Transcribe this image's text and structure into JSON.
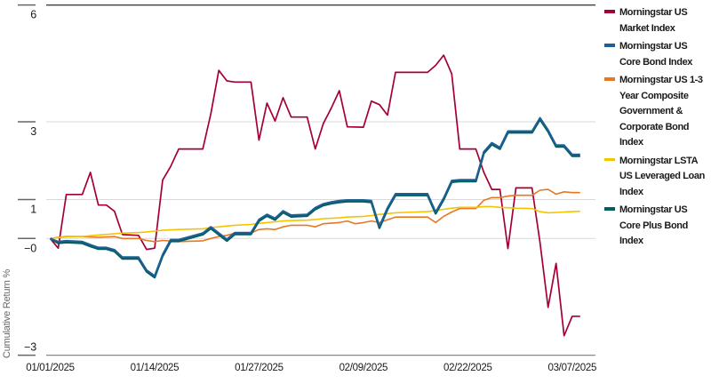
{
  "chart_data": {
    "type": "line",
    "title": "",
    "ylabel": "Cumulative Return %",
    "x_unit": "calendar days since 01/01/2025",
    "grid": "horizontal",
    "legend_position": "right",
    "ylim": [
      -3.0,
      6.0
    ],
    "xlim_days": [
      0,
      67
    ],
    "y_ticks": [
      {
        "value": 6,
        "label": "6"
      },
      {
        "value": 3,
        "label": "3"
      },
      {
        "value": 1,
        "label": "1"
      },
      {
        "value": 0,
        "label": "−0"
      },
      {
        "value": -3,
        "label": "−3"
      }
    ],
    "x_ticks": [
      {
        "day": 0,
        "label": "01/01/2025"
      },
      {
        "day": 13,
        "label": "01/14/2025"
      },
      {
        "day": 26,
        "label": "01/27/2025"
      },
      {
        "day": 39,
        "label": "02/09/2025"
      },
      {
        "day": 52,
        "label": "02/22/2025"
      },
      {
        "day": 65,
        "label": "03/07/2025"
      }
    ],
    "series": [
      {
        "name": "Morningstar US Market Index",
        "legend_lines": [
          "Morningstar US",
          "Market Index"
        ],
        "color": "#A50034",
        "points": [
          [
            0,
            0
          ],
          [
            1,
            -0.25
          ],
          [
            2,
            1.13
          ],
          [
            4,
            1.13
          ],
          [
            5,
            1.7
          ],
          [
            6,
            0.86
          ],
          [
            7,
            0.86
          ],
          [
            8,
            0.7
          ],
          [
            9,
            0.1
          ],
          [
            11,
            0.08
          ],
          [
            12,
            -0.28
          ],
          [
            13,
            -0.25
          ],
          [
            14,
            1.5
          ],
          [
            15,
            1.85
          ],
          [
            16,
            2.3
          ],
          [
            19,
            2.3
          ],
          [
            20,
            3.2
          ],
          [
            21,
            4.32
          ],
          [
            22,
            4.05
          ],
          [
            23,
            4.02
          ],
          [
            25,
            4.02
          ],
          [
            26,
            2.53
          ],
          [
            27,
            3.48
          ],
          [
            28,
            3.02
          ],
          [
            29,
            3.62
          ],
          [
            30,
            3.12
          ],
          [
            32,
            3.12
          ],
          [
            33,
            2.3
          ],
          [
            34,
            2.95
          ],
          [
            35,
            3.35
          ],
          [
            36,
            3.8
          ],
          [
            37,
            2.87
          ],
          [
            39,
            2.86
          ],
          [
            40,
            3.53
          ],
          [
            41,
            3.44
          ],
          [
            42,
            3.17
          ],
          [
            43,
            4.27
          ],
          [
            47,
            4.27
          ],
          [
            48,
            4.45
          ],
          [
            49,
            4.71
          ],
          [
            50,
            4.23
          ],
          [
            51,
            2.3
          ],
          [
            53,
            2.3
          ],
          [
            54,
            1.7
          ],
          [
            55,
            1.26
          ],
          [
            56,
            1.26
          ],
          [
            57,
            -0.26
          ],
          [
            58,
            1.3
          ],
          [
            60,
            1.3
          ],
          [
            61,
            -0.1
          ],
          [
            62,
            -1.77
          ],
          [
            63,
            -0.64
          ],
          [
            64,
            -2.5
          ],
          [
            65,
            -2.0
          ],
          [
            66,
            -2.0
          ]
        ]
      },
      {
        "name": "Morningstar US Core Bond Index",
        "legend_lines": [
          "Morningstar US",
          "Core Bond Index"
        ],
        "color": "#1E5E99",
        "points": [
          [
            0,
            0
          ],
          [
            1,
            -0.08
          ],
          [
            2,
            -0.06
          ],
          [
            4,
            -0.08
          ],
          [
            5,
            -0.16
          ],
          [
            6,
            -0.23
          ],
          [
            7,
            -0.23
          ],
          [
            8,
            -0.29
          ],
          [
            9,
            -0.48
          ],
          [
            11,
            -0.48
          ],
          [
            12,
            -0.81
          ],
          [
            13,
            -0.96
          ],
          [
            14,
            -0.41
          ],
          [
            15,
            -0.03
          ],
          [
            16,
            -0.03
          ],
          [
            19,
            0.14
          ],
          [
            20,
            0.3
          ],
          [
            21,
            0.14
          ],
          [
            22,
            -0.02
          ],
          [
            23,
            0.15
          ],
          [
            25,
            0.15
          ],
          [
            26,
            0.49
          ],
          [
            27,
            0.62
          ],
          [
            28,
            0.52
          ],
          [
            29,
            0.71
          ],
          [
            30,
            0.6
          ],
          [
            32,
            0.62
          ],
          [
            33,
            0.79
          ],
          [
            34,
            0.89
          ],
          [
            35,
            0.94
          ],
          [
            36,
            0.97
          ],
          [
            37,
            0.99
          ],
          [
            39,
            0.99
          ],
          [
            40,
            0.97
          ],
          [
            41,
            0.31
          ],
          [
            42,
            0.79
          ],
          [
            43,
            1.15
          ],
          [
            47,
            1.15
          ],
          [
            48,
            0.68
          ],
          [
            49,
            1.04
          ],
          [
            50,
            1.49
          ],
          [
            51,
            1.51
          ],
          [
            53,
            1.51
          ],
          [
            54,
            2.23
          ],
          [
            55,
            2.46
          ],
          [
            56,
            2.34
          ],
          [
            57,
            2.76
          ],
          [
            60,
            2.76
          ],
          [
            61,
            3.1
          ],
          [
            62,
            2.79
          ],
          [
            63,
            2.4
          ],
          [
            64,
            2.4
          ],
          [
            65,
            2.16
          ],
          [
            66,
            2.16
          ]
        ]
      },
      {
        "name": "Morningstar US 1-3 Year Composite Government & Corporate Bond Index",
        "legend_lines": [
          "Morningstar US 1-3",
          "Year Composite",
          "Government &",
          "Corporate Bond",
          "Index"
        ],
        "color": "#E87722",
        "points": [
          [
            0,
            0
          ],
          [
            1,
            0.03
          ],
          [
            2,
            0.05
          ],
          [
            4,
            0.05
          ],
          [
            6,
            0.03
          ],
          [
            8,
            0.05
          ],
          [
            9,
            0.0
          ],
          [
            11,
            0.0
          ],
          [
            12,
            -0.05
          ],
          [
            13,
            -0.08
          ],
          [
            14,
            -0.05
          ],
          [
            16,
            -0.08
          ],
          [
            19,
            -0.06
          ],
          [
            20,
            0.0
          ],
          [
            21,
            0.05
          ],
          [
            22,
            0.08
          ],
          [
            23,
            0.14
          ],
          [
            25,
            0.14
          ],
          [
            26,
            0.23
          ],
          [
            27,
            0.25
          ],
          [
            28,
            0.23
          ],
          [
            29,
            0.3
          ],
          [
            30,
            0.34
          ],
          [
            32,
            0.34
          ],
          [
            33,
            0.3
          ],
          [
            34,
            0.38
          ],
          [
            36,
            0.41
          ],
          [
            37,
            0.45
          ],
          [
            38,
            0.38
          ],
          [
            39,
            0.41
          ],
          [
            40,
            0.45
          ],
          [
            41,
            0.41
          ],
          [
            42,
            0.48
          ],
          [
            43,
            0.55
          ],
          [
            47,
            0.55
          ],
          [
            48,
            0.41
          ],
          [
            49,
            0.57
          ],
          [
            50,
            0.68
          ],
          [
            51,
            0.77
          ],
          [
            53,
            0.77
          ],
          [
            54,
            0.98
          ],
          [
            55,
            1.05
          ],
          [
            56,
            1.05
          ],
          [
            57,
            1.09
          ],
          [
            58,
            1.11
          ],
          [
            60,
            1.11
          ],
          [
            61,
            1.24
          ],
          [
            62,
            1.26
          ],
          [
            63,
            1.14
          ],
          [
            64,
            1.2
          ],
          [
            65,
            1.18
          ],
          [
            66,
            1.18
          ]
        ]
      },
      {
        "name": "Morningstar LSTA US Leveraged Loan Index",
        "legend_lines": [
          "Morningstar LSTA",
          "US Leveraged Loan",
          "Index"
        ],
        "color": "#F5C400",
        "points": [
          [
            0,
            0
          ],
          [
            1,
            0.02
          ],
          [
            2,
            0.04
          ],
          [
            4,
            0.05
          ],
          [
            5,
            0.07
          ],
          [
            6,
            0.09
          ],
          [
            8,
            0.12
          ],
          [
            9,
            0.14
          ],
          [
            11,
            0.15
          ],
          [
            12,
            0.17
          ],
          [
            13,
            0.19
          ],
          [
            14,
            0.21
          ],
          [
            16,
            0.23
          ],
          [
            19,
            0.25
          ],
          [
            20,
            0.28
          ],
          [
            21,
            0.3
          ],
          [
            22,
            0.32
          ],
          [
            23,
            0.34
          ],
          [
            25,
            0.36
          ],
          [
            26,
            0.39
          ],
          [
            27,
            0.41
          ],
          [
            28,
            0.43
          ],
          [
            29,
            0.45
          ],
          [
            30,
            0.46
          ],
          [
            32,
            0.47
          ],
          [
            33,
            0.49
          ],
          [
            34,
            0.51
          ],
          [
            36,
            0.53
          ],
          [
            37,
            0.55
          ],
          [
            39,
            0.57
          ],
          [
            40,
            0.59
          ],
          [
            41,
            0.62
          ],
          [
            42,
            0.64
          ],
          [
            43,
            0.66
          ],
          [
            44,
            0.67
          ],
          [
            47,
            0.69
          ],
          [
            48,
            0.72
          ],
          [
            49,
            0.75
          ],
          [
            50,
            0.78
          ],
          [
            51,
            0.8
          ],
          [
            53,
            0.8
          ],
          [
            54,
            0.82
          ],
          [
            55,
            0.82
          ],
          [
            56,
            0.8
          ],
          [
            57,
            0.79
          ],
          [
            58,
            0.78
          ],
          [
            60,
            0.77
          ],
          [
            61,
            0.69
          ],
          [
            62,
            0.66
          ],
          [
            63,
            0.67
          ],
          [
            64,
            0.68
          ],
          [
            65,
            0.69
          ],
          [
            66,
            0.7
          ]
        ]
      },
      {
        "name": "Morningstar US Core Plus Bond Index",
        "legend_lines": [
          "Morningstar US",
          "Core Plus Bond",
          "Index"
        ],
        "color": "#00605E",
        "points": [
          [
            0,
            0
          ],
          [
            1,
            -0.12
          ],
          [
            2,
            -0.1
          ],
          [
            4,
            -0.12
          ],
          [
            5,
            -0.2
          ],
          [
            6,
            -0.27
          ],
          [
            7,
            -0.27
          ],
          [
            8,
            -0.33
          ],
          [
            9,
            -0.52
          ],
          [
            11,
            -0.52
          ],
          [
            12,
            -0.85
          ],
          [
            13,
            -1.0
          ],
          [
            14,
            -0.45
          ],
          [
            15,
            -0.07
          ],
          [
            16,
            -0.07
          ],
          [
            19,
            0.1
          ],
          [
            20,
            0.26
          ],
          [
            21,
            0.1
          ],
          [
            22,
            -0.06
          ],
          [
            23,
            0.11
          ],
          [
            25,
            0.11
          ],
          [
            26,
            0.45
          ],
          [
            27,
            0.58
          ],
          [
            28,
            0.48
          ],
          [
            29,
            0.67
          ],
          [
            30,
            0.56
          ],
          [
            32,
            0.58
          ],
          [
            33,
            0.75
          ],
          [
            34,
            0.85
          ],
          [
            35,
            0.9
          ],
          [
            36,
            0.93
          ],
          [
            37,
            0.95
          ],
          [
            39,
            0.95
          ],
          [
            40,
            0.93
          ],
          [
            41,
            0.27
          ],
          [
            42,
            0.75
          ],
          [
            43,
            1.11
          ],
          [
            47,
            1.11
          ],
          [
            48,
            0.64
          ],
          [
            49,
            1.0
          ],
          [
            50,
            1.45
          ],
          [
            51,
            1.47
          ],
          [
            53,
            1.47
          ],
          [
            54,
            2.19
          ],
          [
            55,
            2.42
          ],
          [
            56,
            2.3
          ],
          [
            57,
            2.72
          ],
          [
            60,
            2.72
          ],
          [
            61,
            3.06
          ],
          [
            62,
            2.75
          ],
          [
            63,
            2.36
          ],
          [
            64,
            2.36
          ],
          [
            65,
            2.12
          ],
          [
            66,
            2.12
          ]
        ]
      }
    ],
    "colors": {
      "grid_light": "#D9D9D9",
      "grid_top": "#404040",
      "axis_bottom": "#8A8A8A",
      "tick_dash": "#666666",
      "tick_text": "#1A1A1A",
      "legend_text": "#1A1A1A",
      "axis_title": "#666666"
    }
  }
}
